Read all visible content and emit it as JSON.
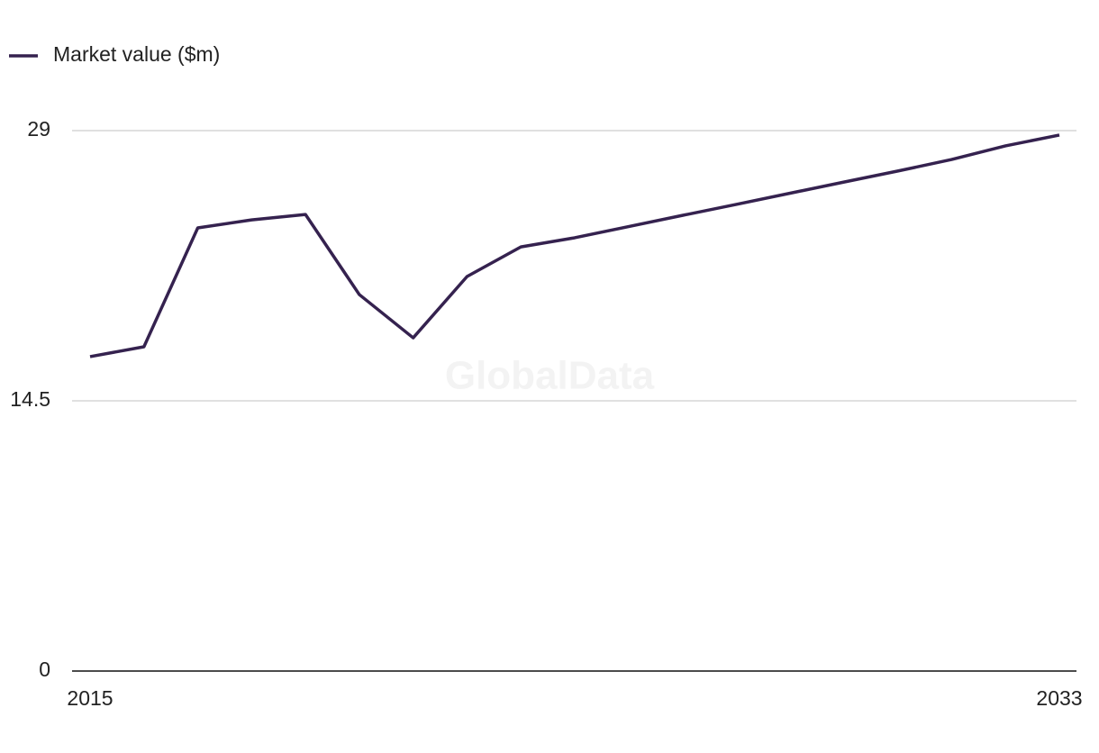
{
  "chart_data": {
    "type": "line",
    "watermark": "GlobalData",
    "x": [
      2015,
      2016,
      2017,
      2018,
      2019,
      2020,
      2021,
      2022,
      2023,
      2024,
      2025,
      2026,
      2027,
      2028,
      2029,
      2030,
      2031,
      2032,
      2033
    ],
    "series": [
      {
        "name": "Market value ($m)",
        "color": "#35224f",
        "values": [
          16.87,
          17.4,
          23.78,
          24.21,
          24.5,
          20.2,
          17.88,
          21.17,
          22.76,
          23.25,
          23.85,
          24.45,
          25.04,
          25.64,
          26.24,
          26.83,
          27.45,
          28.18,
          28.76
        ]
      }
    ],
    "xlim": [
      2015,
      2033
    ],
    "xticks": [
      2015,
      2033
    ],
    "ylim": [
      0,
      29
    ],
    "yticks": [
      0,
      14.5,
      29
    ],
    "grid": true,
    "legend": "top-left"
  }
}
